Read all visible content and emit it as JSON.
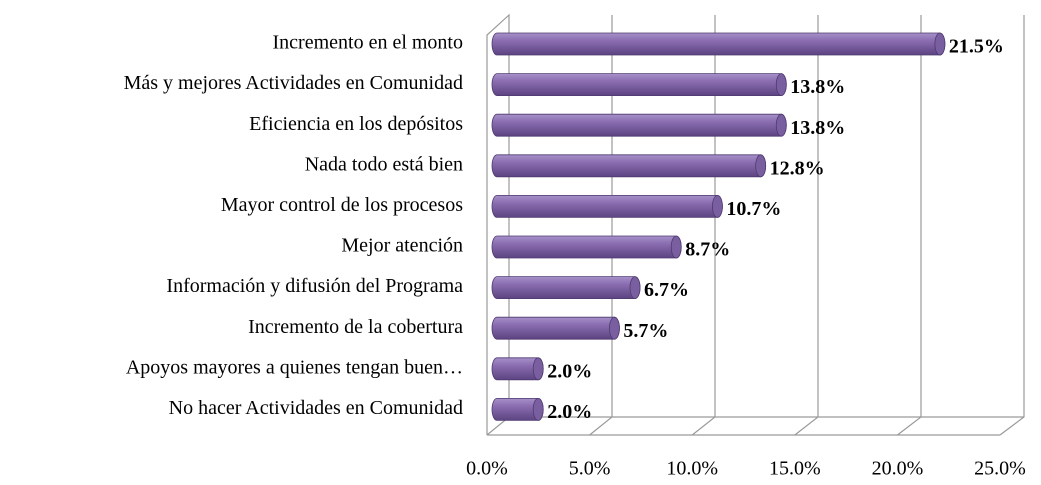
{
  "chart_data": {
    "type": "bar",
    "orientation": "horizontal",
    "categories": [
      "Incremento en el monto",
      "Más y mejores Actividades en Comunidad",
      "Eficiencia en los depósitos",
      "Nada todo está bien",
      "Mayor control de los procesos",
      "Mejor atención",
      "Información y difusión del Programa",
      "Incremento de la cobertura",
      "Apoyos mayores a quienes tengan buen…",
      "No hacer Actividades en Comunidad"
    ],
    "values": [
      21.5,
      13.8,
      13.8,
      12.8,
      10.7,
      8.7,
      6.7,
      5.7,
      2.0,
      2.0
    ],
    "value_labels": [
      "21.5%",
      "13.8%",
      "13.8%",
      "12.8%",
      "10.7%",
      "8.7%",
      "6.7%",
      "5.7%",
      "2.0%",
      "2.0%"
    ],
    "color": "#8064a2",
    "xlim": [
      0,
      25
    ],
    "xticks": [
      {
        "value": 0,
        "label": "0.0%"
      },
      {
        "value": 5,
        "label": "5.0%"
      },
      {
        "value": 10,
        "label": "10.0%"
      },
      {
        "value": 15,
        "label": "15.0%"
      },
      {
        "value": 20,
        "label": "20.0%"
      },
      {
        "value": 25,
        "label": "25.0%"
      }
    ],
    "grid": true
  }
}
